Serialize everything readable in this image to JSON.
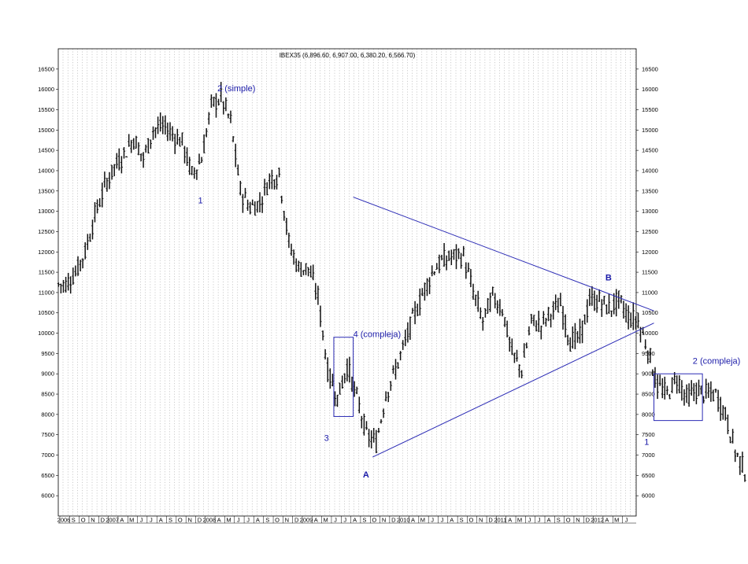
{
  "chart_data": {
    "type": "ohlc",
    "title": "IBEX35 (6,896.60, 6,907.00, 6,380.20, 6,566.70)",
    "ylim": [
      5500,
      17000
    ],
    "yticks": [
      6000,
      6500,
      7000,
      7500,
      8000,
      8500,
      9000,
      9500,
      10000,
      10500,
      11000,
      11500,
      12000,
      12500,
      13000,
      13500,
      14000,
      14500,
      15000,
      15500,
      16000,
      16500
    ],
    "y_tick_labels": [
      "6000",
      "6500",
      "7000",
      "7500",
      "8000",
      "8500",
      "9000",
      "9500",
      "10000",
      "10500",
      "11000",
      "11500",
      "12000",
      "12500",
      "13000",
      "13500",
      "14000",
      "14500",
      "15000",
      "15500",
      "16000",
      "16500"
    ],
    "x_start": "2006-07",
    "x_ticks": [
      "2006",
      "S",
      "O",
      "N",
      "D",
      "2007",
      "A",
      "M",
      "J",
      "J",
      "A",
      "S",
      "O",
      "N",
      "D",
      "2008",
      "A",
      "M",
      "J",
      "J",
      "A",
      "S",
      "O",
      "N",
      "D",
      "2009",
      "A",
      "M",
      "J",
      "J",
      "A",
      "S",
      "O",
      "N",
      "D",
      "2010",
      "A",
      "M",
      "J",
      "J",
      "A",
      "S",
      "O",
      "N",
      "D",
      "2011",
      "A",
      "M",
      "J",
      "J",
      "A",
      "S",
      "O",
      "N",
      "D",
      "2012",
      "A",
      "M",
      "J"
    ],
    "series": [
      {
        "values": [
          [
            "2006-07",
            11200
          ],
          [
            "2006-08",
            11500
          ],
          [
            "2006-09",
            12000
          ],
          [
            "2006-10",
            12900
          ],
          [
            "2006-11",
            13600
          ],
          [
            "2006-12",
            14100
          ],
          [
            "2007-01",
            14400
          ],
          [
            "2007-02",
            14800
          ],
          [
            "2007-03",
            14300
          ],
          [
            "2007-04",
            15000
          ],
          [
            "2007-05",
            15100
          ],
          [
            "2007-06",
            14900
          ],
          [
            "2007-07",
            14700
          ],
          [
            "2007-08",
            13900
          ],
          [
            "2007-09",
            14300
          ],
          [
            "2007-10",
            15600
          ],
          [
            "2007-11",
            15800
          ],
          [
            "2007-12",
            15200
          ],
          [
            "2008-01",
            13500
          ],
          [
            "2008-02",
            13100
          ],
          [
            "2008-03",
            13200
          ],
          [
            "2008-04",
            13800
          ],
          [
            "2008-05",
            13900
          ],
          [
            "2008-06",
            12200
          ],
          [
            "2008-07",
            11600
          ],
          [
            "2008-08",
            11600
          ],
          [
            "2008-09",
            10900
          ],
          [
            "2008-10",
            9100
          ],
          [
            "2008-11",
            8400
          ],
          [
            "2008-12",
            9200
          ],
          [
            "2009-01",
            8400
          ],
          [
            "2009-02",
            7500
          ],
          [
            "2009-03",
            7300
          ],
          [
            "2009-04",
            8500
          ],
          [
            "2009-05",
            9100
          ],
          [
            "2009-06",
            9800
          ],
          [
            "2009-07",
            10500
          ],
          [
            "2009-08",
            11100
          ],
          [
            "2009-09",
            11600
          ],
          [
            "2009-10",
            11800
          ],
          [
            "2009-11",
            11900
          ],
          [
            "2009-12",
            11900
          ],
          [
            "2010-01",
            11000
          ],
          [
            "2010-02",
            10300
          ],
          [
            "2010-03",
            10900
          ],
          [
            "2010-04",
            10600
          ],
          [
            "2010-05",
            9500
          ],
          [
            "2010-06",
            9100
          ],
          [
            "2010-07",
            10300
          ],
          [
            "2010-08",
            10200
          ],
          [
            "2010-09",
            10500
          ],
          [
            "2010-10",
            10700
          ],
          [
            "2010-11",
            9800
          ],
          [
            "2010-12",
            9900
          ],
          [
            "2011-01",
            10800
          ],
          [
            "2011-02",
            10800
          ],
          [
            "2011-03",
            10600
          ],
          [
            "2011-04",
            10800
          ],
          [
            "2011-05",
            10400
          ],
          [
            "2011-06",
            10300
          ],
          [
            "2011-07",
            9600
          ],
          [
            "2011-08",
            8700
          ],
          [
            "2011-09",
            8500
          ],
          [
            "2011-10",
            8900
          ],
          [
            "2011-11",
            8400
          ],
          [
            "2011-12",
            8600
          ],
          [
            "2012-01",
            8500
          ],
          [
            "2012-02",
            8500
          ],
          [
            "2012-03",
            8000
          ],
          [
            "2012-04",
            7100
          ],
          [
            "2012-05",
            6600
          ]
        ]
      }
    ],
    "trendlines": [
      {
        "name": "triangle-upper",
        "from": [
          "2009-01",
          13350
        ],
        "to": [
          "2011-08",
          10550
        ]
      },
      {
        "name": "triangle-lower",
        "from": [
          "2009-03",
          6950
        ],
        "to": [
          "2011-08",
          10250
        ]
      }
    ],
    "boxes": [
      {
        "name": "wave-4-box",
        "from": [
          "2008-11",
          7950
        ],
        "to": [
          "2009-01",
          9900
        ]
      },
      {
        "name": "wave-2-box",
        "from": [
          "2011-08",
          7850
        ],
        "to": [
          "2012-01",
          9000
        ]
      }
    ],
    "annotations": [
      {
        "text": "1",
        "at": [
          "2007-09",
          13200
        ],
        "bold": false
      },
      {
        "text": "2 (simple)",
        "at": [
          "2007-11",
          15950
        ],
        "bold": false
      },
      {
        "text": "3",
        "at": [
          "2008-10",
          7350
        ],
        "bold": false
      },
      {
        "text": "4 (compleja)",
        "at": [
          "2009-01",
          9900
        ],
        "bold": false
      },
      {
        "text": "A",
        "at": [
          "2009-02",
          6450
        ],
        "bold": true
      },
      {
        "text": "B",
        "at": [
          "2011-03",
          11300
        ],
        "bold": true
      },
      {
        "text": "1",
        "at": [
          "2011-07",
          7250
        ],
        "bold": false
      },
      {
        "text": "2 (compleja)",
        "at": [
          "2011-12",
          9250
        ],
        "bold": false
      }
    ],
    "grid": true,
    "grid_style": "vertical-dotted"
  }
}
